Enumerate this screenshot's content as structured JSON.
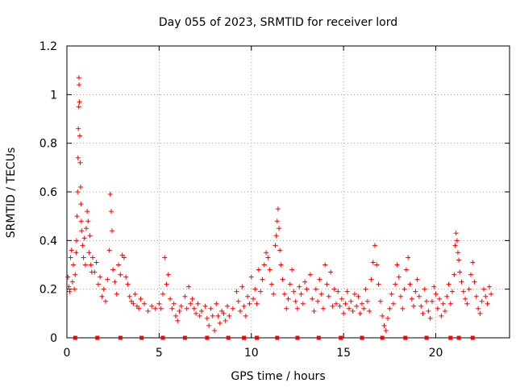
{
  "chart_data": {
    "type": "scatter",
    "title": "Day 055 of 2023, SRMTID for receiver lord",
    "xlabel": "GPS time / hours",
    "ylabel": "SRMTID / TECUs",
    "xlim": [
      0,
      24
    ],
    "ylim": [
      0,
      1.2
    ],
    "x_ticks": [
      0,
      5,
      10,
      15,
      20
    ],
    "x_tick_labels": [
      "0",
      "5",
      "10",
      "15",
      "20"
    ],
    "y_ticks": [
      0,
      0.2,
      0.4,
      0.6,
      0.8,
      1.0,
      1.2
    ],
    "y_tick_labels": [
      "0",
      "0.2",
      "0.4",
      "0.6",
      "0.8",
      "1",
      "1.2"
    ],
    "grid": true,
    "marker": "plus",
    "color": "#ff0000",
    "series": [
      {
        "name": "SRMTID",
        "points": [
          [
            0.05,
            0.25
          ],
          [
            0.1,
            0.21
          ],
          [
            0.15,
            0.19
          ],
          [
            0.2,
            0.33
          ],
          [
            0.25,
            0.36
          ],
          [
            0.3,
            0.23
          ],
          [
            0.35,
            0.3
          ],
          [
            0.4,
            0.2
          ],
          [
            0.45,
            0.26
          ],
          [
            0.5,
            0.35
          ],
          [
            0.52,
            0.4
          ],
          [
            0.55,
            0.5
          ],
          [
            0.58,
            0.6
          ],
          [
            0.6,
            0.74
          ],
          [
            0.62,
            0.86
          ],
          [
            0.64,
            0.95
          ],
          [
            0.65,
            1.07
          ],
          [
            0.66,
            1.04
          ],
          [
            0.68,
            0.97
          ],
          [
            0.7,
            0.83
          ],
          [
            0.72,
            0.72
          ],
          [
            0.74,
            0.62
          ],
          [
            0.76,
            0.55
          ],
          [
            0.78,
            0.48
          ],
          [
            0.8,
            0.44
          ],
          [
            0.85,
            0.38
          ],
          [
            0.9,
            0.33
          ],
          [
            0.95,
            0.41
          ],
          [
            1.0,
            0.3
          ],
          [
            1.05,
            0.45
          ],
          [
            1.1,
            0.52
          ],
          [
            1.15,
            0.48
          ],
          [
            1.2,
            0.35
          ],
          [
            1.25,
            0.42
          ],
          [
            1.3,
            0.3
          ],
          [
            1.35,
            0.27
          ],
          [
            1.4,
            0.33
          ],
          [
            1.5,
            0.27
          ],
          [
            1.6,
            0.31
          ],
          [
            1.7,
            0.22
          ],
          [
            1.8,
            0.25
          ],
          [
            1.9,
            0.17
          ],
          [
            2.0,
            0.2
          ],
          [
            2.1,
            0.15
          ],
          [
            2.2,
            0.24
          ],
          [
            2.3,
            0.36
          ],
          [
            2.35,
            0.59
          ],
          [
            2.4,
            0.52
          ],
          [
            2.45,
            0.44
          ],
          [
            2.5,
            0.28
          ],
          [
            2.6,
            0.23
          ],
          [
            2.7,
            0.18
          ],
          [
            2.8,
            0.3
          ],
          [
            2.9,
            0.26
          ],
          [
            3.0,
            0.34
          ],
          [
            3.1,
            0.33
          ],
          [
            3.2,
            0.25
          ],
          [
            3.3,
            0.22
          ],
          [
            3.4,
            0.17
          ],
          [
            3.5,
            0.15
          ],
          [
            3.6,
            0.14
          ],
          [
            3.7,
            0.18
          ],
          [
            3.8,
            0.13
          ],
          [
            3.9,
            0.12
          ],
          [
            4.0,
            0.16
          ],
          [
            4.2,
            0.14
          ],
          [
            4.4,
            0.11
          ],
          [
            4.6,
            0.13
          ],
          [
            4.8,
            0.12
          ],
          [
            5.0,
            0.14
          ],
          [
            5.1,
            0.12
          ],
          [
            5.2,
            0.18
          ],
          [
            5.3,
            0.33
          ],
          [
            5.4,
            0.22
          ],
          [
            5.5,
            0.26
          ],
          [
            5.6,
            0.16
          ],
          [
            5.7,
            0.12
          ],
          [
            5.8,
            0.14
          ],
          [
            5.9,
            0.09
          ],
          [
            6.0,
            0.07
          ],
          [
            6.1,
            0.11
          ],
          [
            6.2,
            0.13
          ],
          [
            6.4,
            0.17
          ],
          [
            6.5,
            0.12
          ],
          [
            6.6,
            0.21
          ],
          [
            6.7,
            0.14
          ],
          [
            6.8,
            0.16
          ],
          [
            6.9,
            0.12
          ],
          [
            7.0,
            0.1
          ],
          [
            7.1,
            0.14
          ],
          [
            7.2,
            0.09
          ],
          [
            7.3,
            0.11
          ],
          [
            7.5,
            0.13
          ],
          [
            7.6,
            0.08
          ],
          [
            7.7,
            0.05
          ],
          [
            7.8,
            0.12
          ],
          [
            7.9,
            0.09
          ],
          [
            8.0,
            0.03
          ],
          [
            8.1,
            0.14
          ],
          [
            8.2,
            0.09
          ],
          [
            8.3,
            0.06
          ],
          [
            8.4,
            0.11
          ],
          [
            8.5,
            0.1
          ],
          [
            8.6,
            0.07
          ],
          [
            8.7,
            0.13
          ],
          [
            8.8,
            0.09
          ],
          [
            9.0,
            0.12
          ],
          [
            9.2,
            0.19
          ],
          [
            9.3,
            0.15
          ],
          [
            9.4,
            0.11
          ],
          [
            9.5,
            0.21
          ],
          [
            9.6,
            0.13
          ],
          [
            9.7,
            0.09
          ],
          [
            9.8,
            0.17
          ],
          [
            9.9,
            0.14
          ],
          [
            10.0,
            0.25
          ],
          [
            10.1,
            0.16
          ],
          [
            10.2,
            0.2
          ],
          [
            10.3,
            0.14
          ],
          [
            10.4,
            0.28
          ],
          [
            10.5,
            0.19
          ],
          [
            10.6,
            0.24
          ],
          [
            10.7,
            0.3
          ],
          [
            10.8,
            0.35
          ],
          [
            10.9,
            0.33
          ],
          [
            11.0,
            0.28
          ],
          [
            11.1,
            0.22
          ],
          [
            11.2,
            0.18
          ],
          [
            11.3,
            0.38
          ],
          [
            11.35,
            0.42
          ],
          [
            11.4,
            0.48
          ],
          [
            11.45,
            0.53
          ],
          [
            11.5,
            0.45
          ],
          [
            11.55,
            0.36
          ],
          [
            11.6,
            0.3
          ],
          [
            11.7,
            0.24
          ],
          [
            11.8,
            0.18
          ],
          [
            11.9,
            0.12
          ],
          [
            12.0,
            0.16
          ],
          [
            12.1,
            0.22
          ],
          [
            12.2,
            0.28
          ],
          [
            12.3,
            0.19
          ],
          [
            12.4,
            0.15
          ],
          [
            12.5,
            0.12
          ],
          [
            12.6,
            0.21
          ],
          [
            12.7,
            0.18
          ],
          [
            12.8,
            0.14
          ],
          [
            12.9,
            0.23
          ],
          [
            13.0,
            0.2
          ],
          [
            13.2,
            0.26
          ],
          [
            13.3,
            0.16
          ],
          [
            13.4,
            0.11
          ],
          [
            13.5,
            0.2
          ],
          [
            13.6,
            0.15
          ],
          [
            13.7,
            0.24
          ],
          [
            13.8,
            0.18
          ],
          [
            13.9,
            0.12
          ],
          [
            14.0,
            0.3
          ],
          [
            14.1,
            0.22
          ],
          [
            14.2,
            0.17
          ],
          [
            14.3,
            0.27
          ],
          [
            14.4,
            0.13
          ],
          [
            14.5,
            0.2
          ],
          [
            14.6,
            0.14
          ],
          [
            14.7,
            0.19
          ],
          [
            14.8,
            0.13
          ],
          [
            14.9,
            0.16
          ],
          [
            15.0,
            0.1
          ],
          [
            15.1,
            0.14
          ],
          [
            15.2,
            0.19
          ],
          [
            15.3,
            0.12
          ],
          [
            15.4,
            0.15
          ],
          [
            15.5,
            0.11
          ],
          [
            15.6,
            0.18
          ],
          [
            15.7,
            0.13
          ],
          [
            15.8,
            0.17
          ],
          [
            15.9,
            0.1
          ],
          [
            16.0,
            0.14
          ],
          [
            16.1,
            0.12
          ],
          [
            16.2,
            0.2
          ],
          [
            16.3,
            0.15
          ],
          [
            16.4,
            0.11
          ],
          [
            16.5,
            0.24
          ],
          [
            16.6,
            0.31
          ],
          [
            16.7,
            0.38
          ],
          [
            16.8,
            0.3
          ],
          [
            16.9,
            0.22
          ],
          [
            17.0,
            0.15
          ],
          [
            17.1,
            0.09
          ],
          [
            17.2,
            0.05
          ],
          [
            17.3,
            0.03
          ],
          [
            17.4,
            0.08
          ],
          [
            17.5,
            0.12
          ],
          [
            17.6,
            0.18
          ],
          [
            17.7,
            0.14
          ],
          [
            17.8,
            0.22
          ],
          [
            17.9,
            0.3
          ],
          [
            18.0,
            0.25
          ],
          [
            18.1,
            0.17
          ],
          [
            18.2,
            0.12
          ],
          [
            18.3,
            0.2
          ],
          [
            18.4,
            0.28
          ],
          [
            18.5,
            0.33
          ],
          [
            18.6,
            0.22
          ],
          [
            18.7,
            0.16
          ],
          [
            18.8,
            0.13
          ],
          [
            18.9,
            0.19
          ],
          [
            19.0,
            0.24
          ],
          [
            19.1,
            0.17
          ],
          [
            19.2,
            0.13
          ],
          [
            19.3,
            0.1
          ],
          [
            19.4,
            0.2
          ],
          [
            19.5,
            0.15
          ],
          [
            19.6,
            0.11
          ],
          [
            19.7,
            0.08
          ],
          [
            19.8,
            0.15
          ],
          [
            19.9,
            0.21
          ],
          [
            20.0,
            0.18
          ],
          [
            20.1,
            0.12
          ],
          [
            20.2,
            0.16
          ],
          [
            20.3,
            0.09
          ],
          [
            20.4,
            0.14
          ],
          [
            20.5,
            0.11
          ],
          [
            20.6,
            0.17
          ],
          [
            20.7,
            0.22
          ],
          [
            20.8,
            0.14
          ],
          [
            20.9,
            0.19
          ],
          [
            21.0,
            0.26
          ],
          [
            21.05,
            0.38
          ],
          [
            21.1,
            0.43
          ],
          [
            21.15,
            0.4
          ],
          [
            21.2,
            0.35
          ],
          [
            21.25,
            0.32
          ],
          [
            21.3,
            0.27
          ],
          [
            21.4,
            0.23
          ],
          [
            21.5,
            0.19
          ],
          [
            21.6,
            0.16
          ],
          [
            21.7,
            0.14
          ],
          [
            21.8,
            0.2
          ],
          [
            21.9,
            0.26
          ],
          [
            22.0,
            0.31
          ],
          [
            22.1,
            0.23
          ],
          [
            22.2,
            0.17
          ],
          [
            22.3,
            0.12
          ],
          [
            22.4,
            0.1
          ],
          [
            22.5,
            0.15
          ],
          [
            22.6,
            0.2
          ],
          [
            22.7,
            0.17
          ],
          [
            22.8,
            0.14
          ],
          [
            22.9,
            0.21
          ],
          [
            23.0,
            0.18
          ]
        ]
      }
    ],
    "baseline_markers_x": [
      0.45,
      1.65,
      2.9,
      4.05,
      5.2,
      6.4,
      7.6,
      8.75,
      9.6,
      10.3,
      11.4,
      12.5,
      13.65,
      14.85,
      16.0,
      17.1,
      18.35,
      19.5,
      20.8,
      21.25,
      22.0
    ]
  }
}
